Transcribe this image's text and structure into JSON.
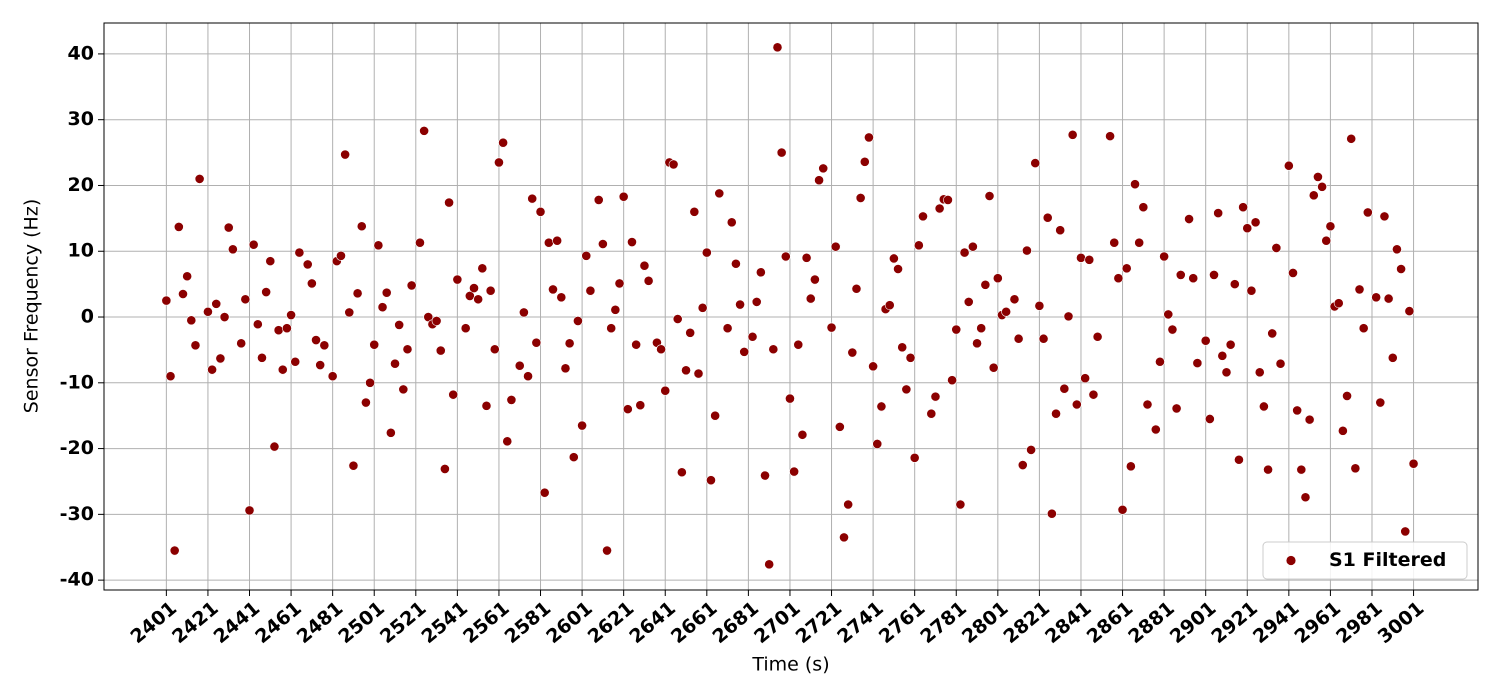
{
  "chart_data": {
    "type": "scatter",
    "x_label": "Time (s)",
    "y_label": "Sensor Frequency (Hz)",
    "xlim": [
      2371,
      3032
    ],
    "ylim": [
      -41.5,
      44.7
    ],
    "xticks": [
      2401,
      2421,
      2441,
      2461,
      2481,
      2501,
      2521,
      2541,
      2561,
      2581,
      2601,
      2621,
      2641,
      2661,
      2681,
      2701,
      2721,
      2741,
      2761,
      2781,
      2801,
      2821,
      2841,
      2861,
      2881,
      2901,
      2921,
      2941,
      2961,
      2981,
      3001
    ],
    "yticks": [
      -40,
      -30,
      -20,
      -10,
      0,
      10,
      20,
      30,
      40
    ],
    "grid": true,
    "legend_position": "lower right",
    "series": [
      {
        "name": "S1 Filtered",
        "color": "#8b0000",
        "x": [
          2401,
          2403,
          2405,
          2407,
          2409,
          2411,
          2413,
          2415,
          2417,
          2421,
          2423,
          2425,
          2427,
          2429,
          2431,
          2433,
          2437,
          2439,
          2441,
          2443,
          2445,
          2447,
          2449,
          2451,
          2453,
          2455,
          2457,
          2459,
          2461,
          2463,
          2465,
          2469,
          2471,
          2473,
          2475,
          2477,
          2481,
          2483,
          2485,
          2487,
          2489,
          2491,
          2493,
          2495,
          2497,
          2499,
          2501,
          2503,
          2505,
          2507,
          2509,
          2511,
          2513,
          2515,
          2517,
          2519,
          2523,
          2525,
          2527,
          2529,
          2531,
          2533,
          2535,
          2537,
          2539,
          2541,
          2545,
          2547,
          2549,
          2551,
          2553,
          2555,
          2557,
          2559,
          2561,
          2563,
          2565,
          2567,
          2571,
          2573,
          2575,
          2577,
          2579,
          2581,
          2583,
          2585,
          2587,
          2589,
          2591,
          2593,
          2595,
          2597,
          2599,
          2601,
          2603,
          2605,
          2609,
          2611,
          2613,
          2615,
          2617,
          2619,
          2621,
          2623,
          2625,
          2627,
          2629,
          2631,
          2633,
          2637,
          2639,
          2641,
          2643,
          2645,
          2647,
          2649,
          2651,
          2653,
          2655,
          2657,
          2659,
          2661,
          2663,
          2665,
          2667,
          2671,
          2673,
          2675,
          2677,
          2679,
          2683,
          2685,
          2687,
          2689,
          2691,
          2693,
          2695,
          2697,
          2699,
          2701,
          2703,
          2705,
          2707,
          2709,
          2711,
          2713,
          2715,
          2717,
          2721,
          2723,
          2725,
          2727,
          2729,
          2731,
          2733,
          2735,
          2737,
          2739,
          2741,
          2743,
          2745,
          2747,
          2749,
          2751,
          2753,
          2755,
          2757,
          2759,
          2761,
          2763,
          2765,
          2769,
          2771,
          2773,
          2775,
          2777,
          2779,
          2781,
          2783,
          2785,
          2787,
          2789,
          2791,
          2793,
          2795,
          2797,
          2799,
          2801,
          2803,
          2805,
          2809,
          2811,
          2813,
          2815,
          2817,
          2819,
          2821,
          2823,
          2825,
          2827,
          2829,
          2831,
          2833,
          2835,
          2837,
          2839,
          2841,
          2843,
          2845,
          2847,
          2849,
          2855,
          2857,
          2859,
          2861,
          2863,
          2865,
          2867,
          2869,
          2871,
          2873,
          2877,
          2879,
          2881,
          2883,
          2885,
          2887,
          2889,
          2893,
          2895,
          2897,
          2901,
          2903,
          2905,
          2907,
          2909,
          2911,
          2913,
          2915,
          2917,
          2919,
          2921,
          2923,
          2925,
          2927,
          2929,
          2931,
          2933,
          2935,
          2937,
          2941,
          2943,
          2945,
          2947,
          2949,
          2951,
          2953,
          2955,
          2957,
          2959,
          2961,
          2963,
          2965,
          2967,
          2969,
          2971,
          2973,
          2975,
          2977,
          2979,
          2983,
          2985,
          2987,
          2989,
          2991,
          2993,
          2995,
          2997,
          2999,
          3001
        ],
        "values": [
          2.5,
          -9,
          -35.5,
          13.7,
          3.5,
          6.2,
          -0.5,
          -4.3,
          21,
          0.8,
          -8,
          2,
          -6.3,
          0,
          13.6,
          10.3,
          -4,
          2.7,
          -29.4,
          11,
          -1.1,
          -6.2,
          3.8,
          8.5,
          -19.7,
          -2,
          -8,
          -1.7,
          0.3,
          -6.8,
          9.8,
          8,
          5.1,
          -3.5,
          -7.3,
          -4.3,
          -9,
          8.5,
          9.3,
          24.7,
          0.7,
          -22.6,
          3.6,
          13.8,
          -13,
          -10,
          -4.2,
          10.9,
          1.5,
          3.7,
          -17.6,
          -7.1,
          -1.2,
          -11,
          -4.9,
          4.8,
          11.3,
          28.3,
          0,
          -1.1,
          -0.6,
          -5.1,
          -23.1,
          17.4,
          -11.8,
          5.7,
          -1.7,
          3.2,
          4.4,
          2.7,
          7.4,
          -13.5,
          4,
          -4.9,
          23.5,
          26.5,
          -18.9,
          -12.6,
          -7.4,
          0.7,
          -9,
          18,
          -3.9,
          16,
          -26.7,
          11.3,
          4.2,
          11.6,
          3,
          -7.8,
          -4,
          -21.3,
          -0.6,
          -16.5,
          9.3,
          4,
          17.8,
          11.1,
          -35.5,
          -1.7,
          1.1,
          5.1,
          18.3,
          -14,
          11.4,
          -4.2,
          -13.4,
          7.8,
          5.5,
          -3.9,
          -4.9,
          -11.2,
          23.5,
          23.2,
          -0.3,
          -23.6,
          -8.1,
          -2.4,
          16,
          -8.6,
          1.4,
          9.8,
          -24.8,
          -15,
          18.8,
          -1.7,
          14.4,
          8.1,
          1.9,
          -5.3,
          -3,
          2.3,
          6.8,
          -24.1,
          -37.6,
          -4.9,
          41,
          25,
          9.2,
          -12.4,
          -23.5,
          -4.2,
          -17.9,
          9,
          2.8,
          5.7,
          20.8,
          22.6,
          -1.6,
          10.7,
          -16.7,
          -33.5,
          -28.5,
          -5.4,
          4.3,
          18.1,
          23.6,
          27.3,
          -7.5,
          -19.3,
          -13.6,
          1.2,
          1.8,
          8.9,
          7.3,
          -4.6,
          -11,
          -6.2,
          -21.4,
          10.9,
          15.3,
          -14.7,
          -12.1,
          16.5,
          17.9,
          17.8,
          -9.6,
          -1.9,
          -28.5,
          9.8,
          2.3,
          10.7,
          -4,
          -1.7,
          4.9,
          18.4,
          -7.7,
          5.9,
          0.3,
          0.8,
          2.7,
          -3.3,
          -22.5,
          10.1,
          -20.2,
          23.4,
          1.7,
          -3.3,
          15.1,
          -29.9,
          -14.7,
          13.2,
          -10.9,
          0.1,
          27.7,
          -13.3,
          9,
          -9.3,
          8.7,
          -11.8,
          -3,
          27.5,
          11.3,
          5.9,
          -29.3,
          7.4,
          -22.7,
          20.2,
          11.3,
          16.7,
          -13.3,
          -17.1,
          -6.8,
          9.2,
          0.4,
          -1.9,
          -13.9,
          6.4,
          14.9,
          5.9,
          -7,
          -3.6,
          -15.5,
          6.4,
          15.8,
          -5.9,
          -8.4,
          -4.2,
          5,
          -21.7,
          16.7,
          13.5,
          4,
          14.4,
          -8.4,
          -13.6,
          -23.2,
          -2.5,
          10.5,
          -7.1,
          23,
          6.7,
          -14.2,
          -23.2,
          -27.4,
          -15.6,
          18.5,
          21.3,
          19.8,
          11.6,
          13.8,
          1.6,
          2.1,
          -17.3,
          -12,
          27.1,
          -23,
          4.2,
          -1.7,
          15.9,
          3,
          -13,
          15.3,
          2.8,
          -6.2,
          10.3,
          7.3,
          -32.6,
          0.9,
          -22.3
        ]
      }
    ]
  }
}
